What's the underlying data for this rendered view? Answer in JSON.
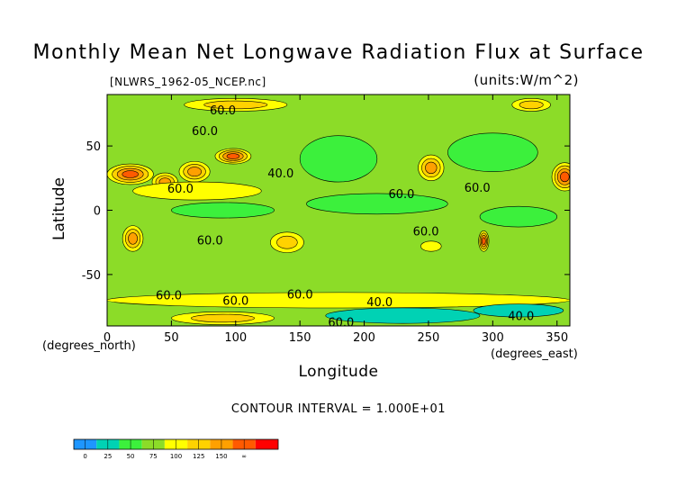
{
  "header": {
    "title": "Monthly Mean Net Longwave Radiation Flux at Surface",
    "file_label": "[NLWRS_1962-05_NCEP.nc]",
    "units_label": "(units:W/m^2)"
  },
  "footer": {
    "contour_interval": "CONTOUR INTERVAL = 1.000E+01"
  },
  "chart_data": {
    "type": "heatmap",
    "title": "Monthly Mean Net Longwave Radiation Flux at Surface",
    "xlabel": "Longitude",
    "ylabel": "Latitude",
    "x_note": "(degrees_east)",
    "y_note": "(degrees_north)",
    "xlim": [
      0,
      360
    ],
    "ylim": [
      -90,
      90
    ],
    "x_ticks": [
      0,
      50,
      100,
      150,
      200,
      250,
      300,
      350
    ],
    "y_ticks": [
      50,
      0,
      -50
    ],
    "background_level": 60,
    "contour_labels": [
      {
        "text": "60.0",
        "lon": 90,
        "lat": 78
      },
      {
        "text": "60.0",
        "lon": 76,
        "lat": 62
      },
      {
        "text": "40.0",
        "lon": 135,
        "lat": 29
      },
      {
        "text": "60.0",
        "lon": 57,
        "lat": 17
      },
      {
        "text": "60.0",
        "lon": 229,
        "lat": 13
      },
      {
        "text": "60.0",
        "lon": 288,
        "lat": 18
      },
      {
        "text": "60.0",
        "lon": 248,
        "lat": -16
      },
      {
        "text": "60.0",
        "lon": 80,
        "lat": -23
      },
      {
        "text": "60.0",
        "lon": 48,
        "lat": -66
      },
      {
        "text": "60.0",
        "lon": 100,
        "lat": -70
      },
      {
        "text": "60.0",
        "lon": 150,
        "lat": -65
      },
      {
        "text": "40.0",
        "lon": 212,
        "lat": -71
      },
      {
        "text": "40.0",
        "lon": 322,
        "lat": -82
      },
      {
        "text": "60.0",
        "lon": 182,
        "lat": -87
      }
    ],
    "features": [
      {
        "lon": 18,
        "lat": 28,
        "rx": 18,
        "ry": 8,
        "value": 150
      },
      {
        "lon": 45,
        "lat": 22,
        "rx": 10,
        "ry": 7,
        "value": 130
      },
      {
        "lon": 68,
        "lat": 30,
        "rx": 12,
        "ry": 8,
        "value": 128
      },
      {
        "lon": 98,
        "lat": 42,
        "rx": 14,
        "ry": 6,
        "value": 150
      },
      {
        "lon": 252,
        "lat": 33,
        "rx": 10,
        "ry": 10,
        "value": 145
      },
      {
        "lon": 356,
        "lat": 26,
        "rx": 10,
        "ry": 11,
        "value": 150
      },
      {
        "lon": 20,
        "lat": -22,
        "rx": 8,
        "ry": 10,
        "value": 125
      },
      {
        "lon": 140,
        "lat": -25,
        "rx": 13,
        "ry": 8,
        "value": 120
      },
      {
        "lon": 293,
        "lat": -24,
        "rx": 4,
        "ry": 8,
        "value": 170
      },
      {
        "lon": 252,
        "lat": -28,
        "rx": 8,
        "ry": 4,
        "value": 95
      },
      {
        "lon": 100,
        "lat": 82,
        "rx": 40,
        "ry": 5,
        "value": 110
      },
      {
        "lon": 330,
        "lat": 82,
        "rx": 15,
        "ry": 5,
        "value": 120
      },
      {
        "lon": 70,
        "lat": 15,
        "rx": 50,
        "ry": 7,
        "value": 85
      },
      {
        "lon": 300,
        "lat": 45,
        "rx": 35,
        "ry": 15,
        "value": 45
      },
      {
        "lon": 180,
        "lat": 40,
        "rx": 30,
        "ry": 18,
        "value": 40
      },
      {
        "lon": 210,
        "lat": 5,
        "rx": 55,
        "ry": 8,
        "value": 42
      },
      {
        "lon": 90,
        "lat": 0,
        "rx": 40,
        "ry": 6,
        "value": 44
      },
      {
        "lon": 320,
        "lat": -5,
        "rx": 30,
        "ry": 8,
        "value": 45
      },
      {
        "lon": 180,
        "lat": -70,
        "rx": 180,
        "ry": 6,
        "value": 85
      },
      {
        "lon": 230,
        "lat": -82,
        "rx": 60,
        "ry": 6,
        "value": 20
      },
      {
        "lon": 320,
        "lat": -78,
        "rx": 35,
        "ry": 5,
        "value": 10
      },
      {
        "lon": 90,
        "lat": -84,
        "rx": 40,
        "ry": 5,
        "value": 110
      }
    ],
    "colorbar": {
      "levels": [
        0,
        25,
        50,
        75,
        100,
        125,
        150
      ],
      "tick_labels": [
        "0",
        "25",
        "50",
        "75",
        "100",
        "125",
        "150",
        "∞"
      ],
      "colors": [
        "#1e96ff",
        "#00d2b4",
        "#3cf03c",
        "#8cdc28",
        "#ffff00",
        "#ffd200",
        "#ffa000",
        "#ff5a00",
        "#ff0000"
      ]
    }
  }
}
